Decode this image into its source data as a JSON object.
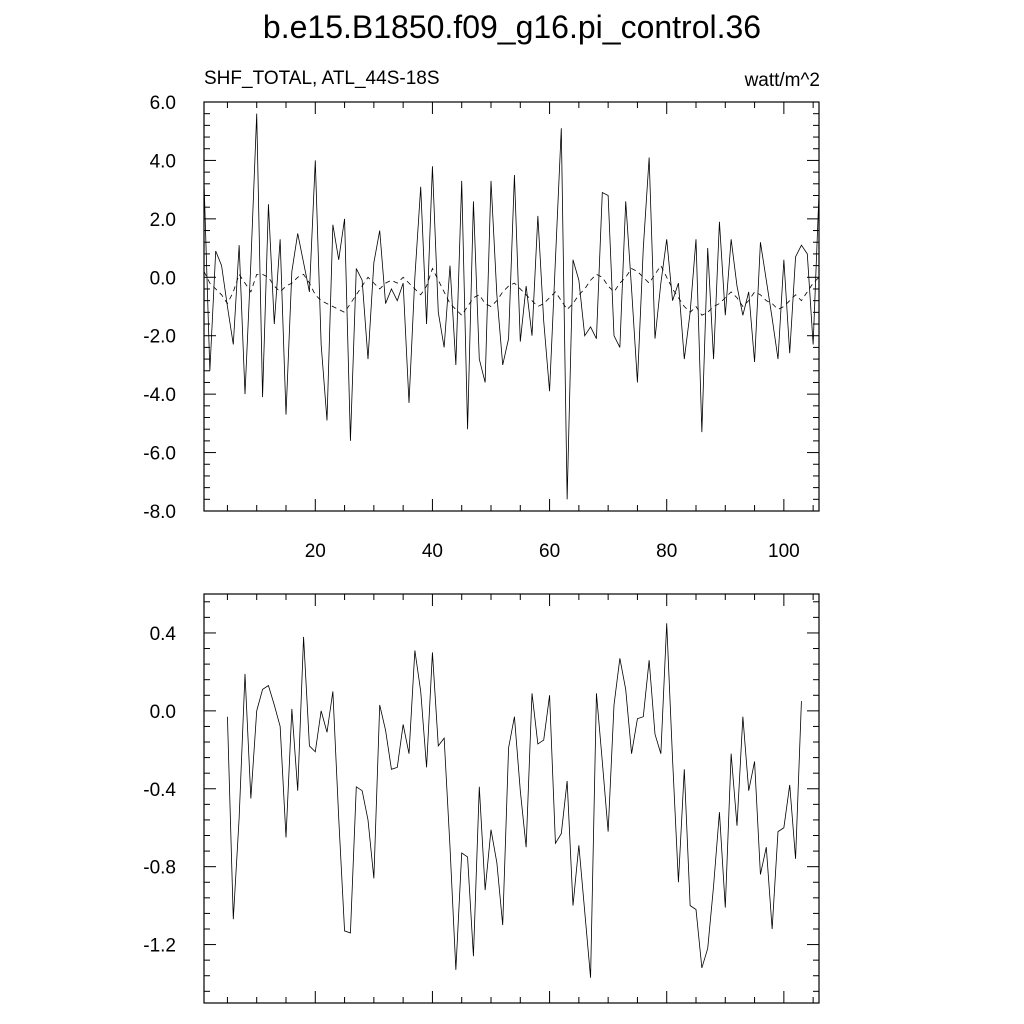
{
  "figure": {
    "title": "b.e15.B1850.f09_g16.pi_control.36"
  },
  "chart_data": [
    {
      "type": "line",
      "left_label": "SHF_TOTAL, ATL_44S-18S",
      "right_label": "watt/m^2",
      "xlim": [
        1,
        106
      ],
      "ylim": [
        -8,
        6
      ],
      "x_ticks": [
        20,
        40,
        60,
        80,
        100
      ],
      "x_tick_labels": [
        "20",
        "40",
        "60",
        "80",
        "100"
      ],
      "y_ticks": [
        6,
        4,
        2,
        0,
        -2,
        -4,
        -6,
        -8
      ],
      "y_tick_labels": [
        "6.0",
        "4.0",
        "2.0",
        "0.0",
        "-2.0",
        "-4.0",
        "-6.0",
        "-8.0"
      ],
      "series": [
        {
          "style": "solid",
          "x_start": 1,
          "values": [
            3.3,
            -3.2,
            0.9,
            0.4,
            -1.0,
            -2.3,
            1.1,
            -4.0,
            0.5,
            5.6,
            -4.1,
            2.5,
            -1.6,
            1.3,
            -4.7,
            0.2,
            1.5,
            0.5,
            -0.5,
            4.0,
            -2.3,
            -4.9,
            1.8,
            0.6,
            2.0,
            -5.6,
            0.3,
            -0.1,
            -2.8,
            0.5,
            1.6,
            -0.9,
            -0.4,
            -0.8,
            -0.2,
            -4.3,
            0.0,
            3.1,
            -1.6,
            3.8,
            -1.2,
            -2.4,
            0.4,
            -3.0,
            3.3,
            -5.2,
            2.6,
            -2.8,
            -3.6,
            3.3,
            -0.6,
            -3.0,
            -2.1,
            3.5,
            -2.2,
            -0.3,
            -2.0,
            2.1,
            -1.5,
            -3.9,
            0.6,
            5.1,
            -7.6,
            0.6,
            -0.1,
            -2.0,
            -1.7,
            -2.1,
            2.9,
            2.8,
            -2.0,
            -2.4,
            2.6,
            -0.4,
            -3.6,
            1.0,
            4.1,
            -2.1,
            -0.2,
            1.3,
            -0.8,
            -0.2,
            -2.8,
            -1.2,
            1.3,
            -5.3,
            1.0,
            -2.8,
            1.9,
            -1.3,
            1.3,
            -0.3,
            -1.3,
            -0.5,
            -2.9,
            1.2,
            -0.1,
            -1.4,
            -2.8,
            0.6,
            -2.6,
            0.7,
            1.1,
            0.8,
            -2.3,
            2.9
          ]
        },
        {
          "style": "dashed",
          "x_start": 1,
          "values": [
            0.2,
            -0.2,
            -0.4,
            -0.6,
            -0.9,
            -0.5,
            0.1,
            -0.2,
            -0.5,
            0.1,
            0.1,
            0.0,
            -0.3,
            -0.5,
            -0.3,
            -0.2,
            0.0,
            0.1,
            -0.2,
            -0.6,
            -0.8,
            -0.9,
            -1.0,
            -1.1,
            -1.2,
            -0.9,
            -0.6,
            -0.3,
            0.0,
            -0.2,
            -0.4,
            -0.2,
            -0.1,
            -0.2,
            0.0,
            -0.2,
            -0.4,
            -0.6,
            -0.3,
            0.3,
            -0.1,
            -0.5,
            -0.9,
            -1.1,
            -1.3,
            -1.0,
            -0.7,
            -0.6,
            -0.9,
            -1.0,
            -0.8,
            -0.5,
            -0.3,
            -0.2,
            -0.4,
            -0.6,
            -0.8,
            -1.0,
            -0.9,
            -0.7,
            -0.5,
            -0.8,
            -1.1,
            -0.9,
            -0.6,
            -0.4,
            -0.1,
            0.1,
            0.0,
            -0.3,
            -0.5,
            -0.2,
            0.0,
            0.3,
            0.2,
            0.0,
            -0.2,
            0.1,
            0.4,
            0.0,
            -0.4,
            -0.7,
            -1.0,
            -1.2,
            -1.0,
            -1.3,
            -1.2,
            -1.0,
            -0.9,
            -0.7,
            -0.5,
            -0.7,
            -1.0,
            -0.8,
            -0.5,
            -0.6,
            -0.8,
            -0.9,
            -1.1,
            -1.0,
            -0.8,
            -0.6,
            -0.8,
            -0.5,
            -0.2,
            0.0
          ]
        }
      ]
    },
    {
      "type": "line",
      "xlim": [
        1,
        106
      ],
      "ylim": [
        -1.5,
        0.6
      ],
      "x_ticks": [
        20,
        40,
        60,
        80,
        100
      ],
      "x_tick_labels": [],
      "y_ticks": [
        0.4,
        0.0,
        -0.4,
        -0.8,
        -1.2
      ],
      "y_tick_labels": [
        "0.4",
        "0.0",
        "-0.4",
        "-0.8",
        "-1.2"
      ],
      "series": [
        {
          "style": "solid",
          "x_start": 5,
          "values": [
            -0.03,
            -1.07,
            -0.55,
            0.19,
            -0.45,
            0.0,
            0.11,
            0.13,
            0.03,
            -0.08,
            -0.65,
            0.01,
            -0.41,
            0.38,
            -0.18,
            -0.21,
            0.0,
            -0.11,
            0.1,
            -0.55,
            -1.13,
            -1.14,
            -0.39,
            -0.41,
            -0.56,
            -0.86,
            0.03,
            -0.1,
            -0.3,
            -0.29,
            -0.07,
            -0.22,
            0.31,
            0.1,
            -0.29,
            0.3,
            -0.18,
            -0.14,
            -0.7,
            -1.33,
            -0.73,
            -0.75,
            -1.26,
            -0.39,
            -0.92,
            -0.61,
            -0.78,
            -1.1,
            -0.19,
            -0.03,
            -0.41,
            -0.7,
            0.09,
            -0.17,
            -0.15,
            0.08,
            -0.68,
            -0.63,
            -0.36,
            -1.0,
            -0.69,
            -1.03,
            -1.37,
            0.09,
            -0.26,
            -0.62,
            0.03,
            0.27,
            0.11,
            -0.22,
            -0.04,
            -0.03,
            0.26,
            -0.12,
            -0.22,
            0.45,
            -0.25,
            -0.88,
            -0.3,
            -1.0,
            -1.02,
            -1.32,
            -1.22,
            -0.9,
            -0.52,
            -1.01,
            -0.22,
            -0.59,
            -0.03,
            -0.41,
            -0.26,
            -0.84,
            -0.7,
            -1.12,
            -0.62,
            -0.6,
            -0.38,
            -0.76,
            0.05
          ]
        }
      ]
    }
  ]
}
